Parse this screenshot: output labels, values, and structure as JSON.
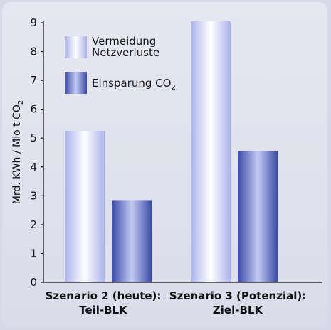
{
  "chart_data": {
    "type": "bar",
    "categories": [
      [
        "Szenario 2 (heute):",
        "Teil-BLK"
      ],
      [
        "Szenario 3 (Potenzial):",
        "Ziel-BLK"
      ]
    ],
    "series": [
      {
        "name": "Vermeidung Netzverluste",
        "name_lines": [
          "Vermeidung",
          "Netzverluste"
        ],
        "values": [
          5.25,
          9.05
        ],
        "color": "#c7cdf4"
      },
      {
        "name": "Einsparung CO2",
        "name_main": "Einsparung CO",
        "name_sub": "2",
        "values": [
          2.85,
          4.55
        ],
        "color": "#4e5eb6"
      }
    ],
    "ylabel": {
      "main": "Mrd. KWh / Mio t CO",
      "sub": "2"
    },
    "ylim": [
      0,
      9
    ],
    "yticks": [
      0,
      1,
      2,
      3,
      4,
      5,
      6,
      7,
      8,
      9
    ],
    "legend_position": "top-left",
    "grid": false
  }
}
